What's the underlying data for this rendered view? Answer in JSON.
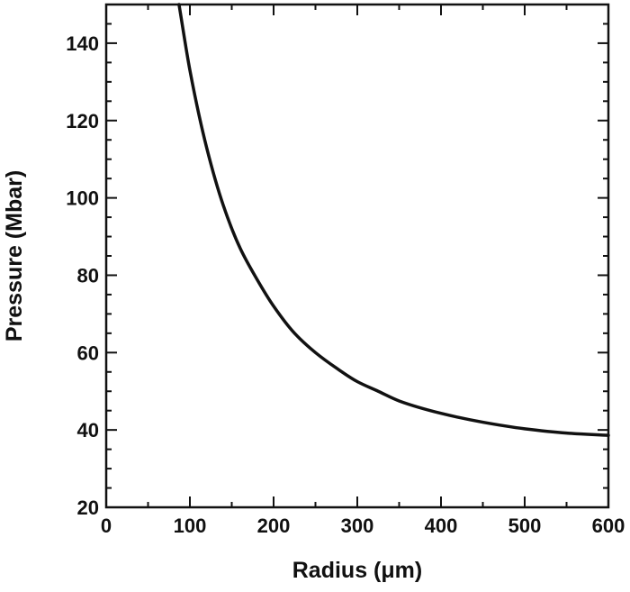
{
  "chart_data": {
    "type": "line",
    "title": "",
    "xlabel": "Radius (μm)",
    "ylabel": "Pressure (Mbar)",
    "xlim": [
      0,
      600
    ],
    "ylim": [
      20,
      150
    ],
    "xticks": [
      0,
      100,
      200,
      300,
      400,
      500,
      600
    ],
    "yticks": [
      20,
      40,
      60,
      80,
      100,
      120,
      140
    ],
    "xtick_labels": [
      "0",
      "100",
      "200",
      "300",
      "400",
      "500",
      "600"
    ],
    "ytick_labels": [
      "20",
      "40",
      "60",
      "80",
      "100",
      "120",
      "140"
    ],
    "grid": false,
    "legend": "none",
    "line_color": "#111111",
    "series": [
      {
        "x": [
          87,
          100,
          120,
          140,
          160,
          180,
          200,
          225,
          250,
          275,
          300,
          325,
          350,
          400,
          450,
          500,
          550,
          600
        ],
        "y": [
          150,
          133,
          113,
          98,
          87,
          79,
          72,
          65,
          60,
          56,
          52.5,
          50,
          47.5,
          44.3,
          42,
          40.3,
          39.2,
          38.6
        ]
      }
    ]
  }
}
